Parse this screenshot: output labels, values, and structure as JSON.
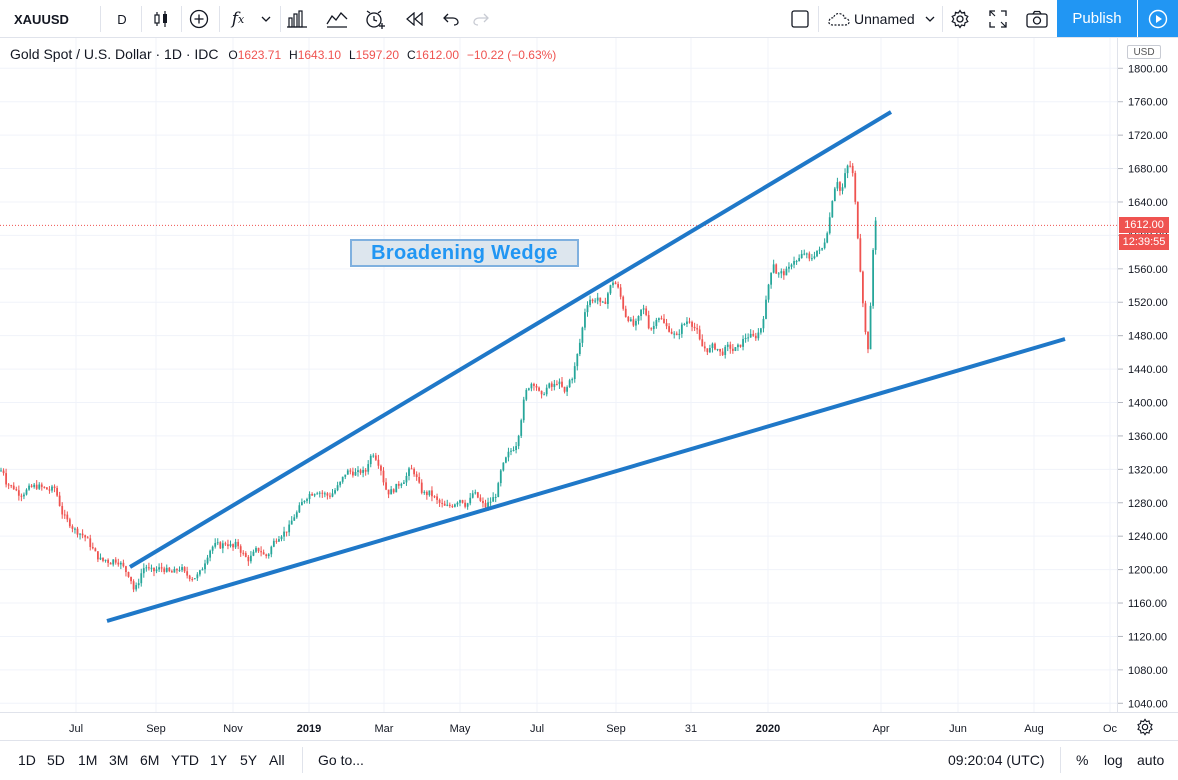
{
  "toolbar": {
    "symbol": "XAUUSD",
    "interval": "D",
    "layout_name": "Unnamed",
    "publish_label": "Publish",
    "icons": [
      "candles-icon",
      "add-icon",
      "indicators-icon",
      "chevron-down-icon",
      "bar-templates-icon",
      "compare-icon",
      "alert-icon",
      "replay-icon",
      "undo-icon",
      "redo-icon",
      "checkbox-icon",
      "cloud-icon",
      "settings-icon",
      "fullscreen-icon",
      "camera-icon",
      "play-icon"
    ]
  },
  "legend": {
    "title": "Gold Spot / U.S. Dollar · 1D · IDC",
    "o_label": "O",
    "o": "1623.71",
    "h_label": "H",
    "h": "1643.10",
    "l_label": "L",
    "l": "1597.20",
    "c_label": "C",
    "c": "1612.00",
    "change": "−10.22 (−0.63%)"
  },
  "price_axis": {
    "currency": "USD",
    "last_price": "1612.00",
    "countdown": "12:39:55"
  },
  "bottom": {
    "ranges": [
      "1D",
      "5D",
      "1M",
      "3M",
      "6M",
      "YTD",
      "1Y",
      "5Y",
      "All"
    ],
    "goto": "Go to...",
    "clock": "09:20:04 (UTC)",
    "percent": "%",
    "log": "log",
    "auto": "auto"
  },
  "colors": {
    "up": "#26a69a",
    "down": "#ef5350",
    "trendline": "#1f78c8",
    "accent": "#2196f3"
  },
  "annotation": {
    "text": "Broadening Wedge"
  },
  "chart_data": {
    "type": "candlestick",
    "title": "Gold Spot / U.S. Dollar",
    "ylim": [
      1020,
      1820
    ],
    "yticks": [
      1040,
      1080,
      1120,
      1160,
      1200,
      1240,
      1280,
      1320,
      1360,
      1400,
      1440,
      1480,
      1520,
      1560,
      1600,
      1640,
      1680,
      1720,
      1760,
      1800
    ],
    "xticks": [
      "Jul",
      "Sep",
      "Nov",
      "2019",
      "Mar",
      "May",
      "Jul",
      "Sep",
      "31",
      "2020",
      "Apr",
      "Jun",
      "Aug",
      "Oc"
    ],
    "current_price": 1612.0,
    "price_path": [
      [
        0,
        1318
      ],
      [
        3,
        1320
      ],
      [
        6,
        1305
      ],
      [
        10,
        1300
      ],
      [
        14,
        1298
      ],
      [
        18,
        1292
      ],
      [
        22,
        1290
      ],
      [
        26,
        1294
      ],
      [
        30,
        1298
      ],
      [
        35,
        1300
      ],
      [
        40,
        1299
      ],
      [
        45,
        1297
      ],
      [
        50,
        1295
      ],
      [
        55,
        1298
      ],
      [
        58,
        1285
      ],
      [
        62,
        1268
      ],
      [
        66,
        1260
      ],
      [
        70,
        1255
      ],
      [
        74,
        1248
      ],
      [
        78,
        1245
      ],
      [
        82,
        1242
      ],
      [
        86,
        1238
      ],
      [
        90,
        1230
      ],
      [
        94,
        1222
      ],
      [
        98,
        1215
      ],
      [
        102,
        1210
      ],
      [
        106,
        1212
      ],
      [
        110,
        1208
      ],
      [
        114,
        1212
      ],
      [
        118,
        1210
      ],
      [
        122,
        1205
      ],
      [
        126,
        1198
      ],
      [
        130,
        1192
      ],
      [
        134,
        1175
      ],
      [
        137,
        1180
      ],
      [
        141,
        1195
      ],
      [
        145,
        1205
      ],
      [
        149,
        1200
      ],
      [
        153,
        1198
      ],
      [
        157,
        1200
      ],
      [
        161,
        1202
      ],
      [
        165,
        1200
      ],
      [
        169,
        1197
      ],
      [
        173,
        1196
      ],
      [
        177,
        1200
      ],
      [
        181,
        1202
      ],
      [
        185,
        1195
      ],
      [
        189,
        1192
      ],
      [
        193,
        1190
      ],
      [
        197,
        1192
      ],
      [
        201,
        1198
      ],
      [
        205,
        1210
      ],
      [
        209,
        1222
      ],
      [
        213,
        1228
      ],
      [
        217,
        1230
      ],
      [
        221,
        1228
      ],
      [
        225,
        1232
      ],
      [
        229,
        1230
      ],
      [
        233,
        1226
      ],
      [
        237,
        1232
      ],
      [
        241,
        1222
      ],
      [
        245,
        1215
      ],
      [
        249,
        1212
      ],
      [
        253,
        1218
      ],
      [
        257,
        1225
      ],
      [
        261,
        1222
      ],
      [
        265,
        1215
      ],
      [
        269,
        1220
      ],
      [
        273,
        1232
      ],
      [
        277,
        1238
      ],
      [
        281,
        1242
      ],
      [
        285,
        1245
      ],
      [
        289,
        1250
      ],
      [
        293,
        1262
      ],
      [
        297,
        1268
      ],
      [
        301,
        1278
      ],
      [
        305,
        1285
      ],
      [
        309,
        1290
      ],
      [
        313,
        1292
      ],
      [
        317,
        1294
      ],
      [
        321,
        1292
      ],
      [
        325,
        1290
      ],
      [
        329,
        1288
      ],
      [
        333,
        1292
      ],
      [
        337,
        1298
      ],
      [
        341,
        1305
      ],
      [
        345,
        1315
      ],
      [
        349,
        1318
      ],
      [
        353,
        1316
      ],
      [
        357,
        1315
      ],
      [
        361,
        1318
      ],
      [
        365,
        1315
      ],
      [
        369,
        1332
      ],
      [
        373,
        1340
      ],
      [
        377,
        1332
      ],
      [
        381,
        1320
      ],
      [
        385,
        1298
      ],
      [
        389,
        1292
      ],
      [
        393,
        1295
      ],
      [
        397,
        1300
      ],
      [
        401,
        1305
      ],
      [
        405,
        1308
      ],
      [
        409,
        1318
      ],
      [
        413,
        1320
      ],
      [
        417,
        1308
      ],
      [
        421,
        1295
      ],
      [
        425,
        1290
      ],
      [
        429,
        1292
      ],
      [
        433,
        1288
      ],
      [
        437,
        1282
      ],
      [
        441,
        1278
      ],
      [
        445,
        1275
      ],
      [
        449,
        1276
      ],
      [
        453,
        1278
      ],
      [
        457,
        1282
      ],
      [
        461,
        1285
      ],
      [
        465,
        1278
      ],
      [
        469,
        1280
      ],
      [
        473,
        1292
      ],
      [
        477,
        1288
      ],
      [
        481,
        1280
      ],
      [
        485,
        1275
      ],
      [
        489,
        1280
      ],
      [
        493,
        1285
      ],
      [
        497,
        1292
      ],
      [
        501,
        1318
      ],
      [
        505,
        1330
      ],
      [
        509,
        1340
      ],
      [
        513,
        1345
      ],
      [
        517,
        1352
      ],
      [
        521,
        1380
      ],
      [
        525,
        1410
      ],
      [
        529,
        1420
      ],
      [
        533,
        1425
      ],
      [
        537,
        1418
      ],
      [
        541,
        1405
      ],
      [
        545,
        1415
      ],
      [
        549,
        1420
      ],
      [
        553,
        1418
      ],
      [
        557,
        1425
      ],
      [
        561,
        1420
      ],
      [
        565,
        1410
      ],
      [
        569,
        1425
      ],
      [
        573,
        1432
      ],
      [
        577,
        1455
      ],
      [
        581,
        1478
      ],
      [
        585,
        1510
      ],
      [
        589,
        1525
      ],
      [
        593,
        1520
      ],
      [
        597,
        1528
      ],
      [
        601,
        1515
      ],
      [
        605,
        1520
      ],
      [
        609,
        1535
      ],
      [
        613,
        1545
      ],
      [
        617,
        1540
      ],
      [
        621,
        1525
      ],
      [
        625,
        1505
      ],
      [
        629,
        1500
      ],
      [
        633,
        1492
      ],
      [
        637,
        1495
      ],
      [
        641,
        1510
      ],
      [
        645,
        1512
      ],
      [
        649,
        1490
      ],
      [
        653,
        1488
      ],
      [
        657,
        1505
      ],
      [
        661,
        1500
      ],
      [
        665,
        1492
      ],
      [
        669,
        1488
      ],
      [
        673,
        1482
      ],
      [
        677,
        1478
      ],
      [
        681,
        1490
      ],
      [
        685,
        1495
      ],
      [
        689,
        1500
      ],
      [
        693,
        1492
      ],
      [
        697,
        1485
      ],
      [
        701,
        1468
      ],
      [
        705,
        1465
      ],
      [
        709,
        1462
      ],
      [
        713,
        1468
      ],
      [
        717,
        1465
      ],
      [
        721,
        1458
      ],
      [
        725,
        1463
      ],
      [
        729,
        1468
      ],
      [
        733,
        1462
      ],
      [
        737,
        1465
      ],
      [
        741,
        1470
      ],
      [
        745,
        1478
      ],
      [
        749,
        1480
      ],
      [
        753,
        1478
      ],
      [
        757,
        1480
      ],
      [
        761,
        1490
      ],
      [
        765,
        1512
      ],
      [
        769,
        1545
      ],
      [
        773,
        1570
      ],
      [
        777,
        1552
      ],
      [
        781,
        1555
      ],
      [
        785,
        1555
      ],
      [
        789,
        1560
      ],
      [
        793,
        1572
      ],
      [
        797,
        1568
      ],
      [
        801,
        1575
      ],
      [
        805,
        1580
      ],
      [
        809,
        1570
      ],
      [
        813,
        1575
      ],
      [
        817,
        1582
      ],
      [
        821,
        1580
      ],
      [
        825,
        1595
      ],
      [
        829,
        1615
      ],
      [
        833,
        1650
      ],
      [
        837,
        1668
      ],
      [
        841,
        1648
      ],
      [
        845,
        1672
      ],
      [
        849,
        1688
      ],
      [
        853,
        1672
      ],
      [
        857,
        1612
      ],
      [
        860,
        1565
      ],
      [
        863,
        1520
      ],
      [
        866,
        1475
      ],
      [
        869,
        1462
      ],
      [
        872,
        1560
      ],
      [
        875,
        1622
      ],
      [
        878,
        1612
      ]
    ]
  }
}
